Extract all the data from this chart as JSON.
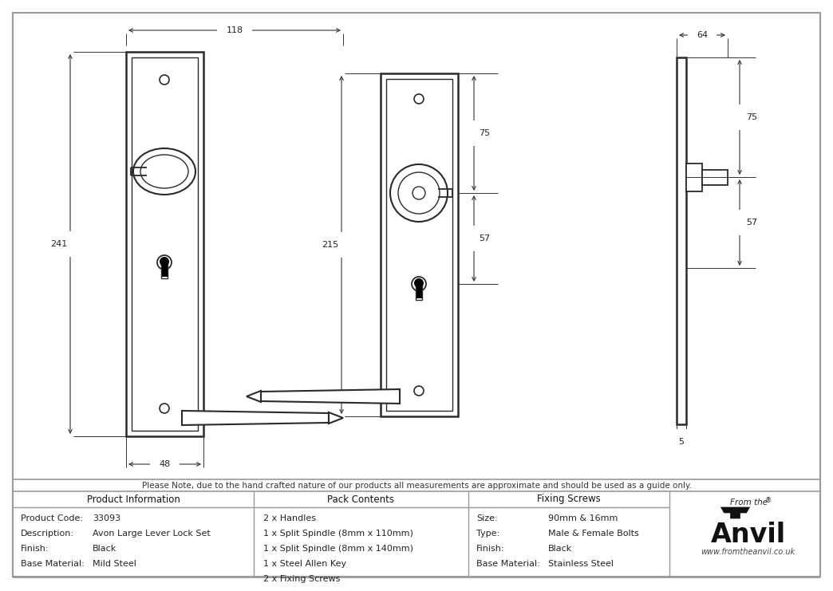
{
  "bg_color": "#ffffff",
  "line_color": "#2a2a2a",
  "dim_color": "#333333",
  "text_color": "#222222",
  "note_text": "Please Note, due to the hand crafted nature of our products all measurements are approximate and should be used as a guide only.",
  "product_info": [
    [
      "Product Code:",
      "33093"
    ],
    [
      "Description:",
      "Avon Large Lever Lock Set"
    ],
    [
      "Finish:",
      "Black"
    ],
    [
      "Base Material:",
      "Mild Steel"
    ]
  ],
  "pack_contents": [
    "2 x Handles",
    "1 x Split Spindle (8mm x 110mm)",
    "1 x Split Spindle (8mm x 140mm)",
    "1 x Steel Allen Key",
    "2 x Fixing Screws"
  ],
  "fixing_screws": [
    [
      "Size:",
      "90mm & 16mm"
    ],
    [
      "Type:",
      "Male & Female Bolts"
    ],
    [
      "Finish:",
      "Black"
    ],
    [
      "Base Material:",
      "Stainless Steel"
    ]
  ],
  "dim_118": "118",
  "dim_241": "241",
  "dim_48": "48",
  "dim_215": "215",
  "dim_75": "75",
  "dim_57": "57",
  "dim_64": "64",
  "dim_5": "5"
}
